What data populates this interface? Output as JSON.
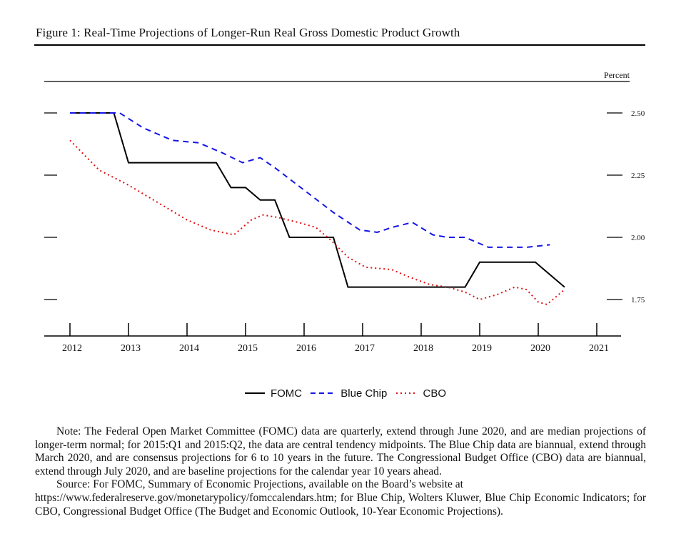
{
  "figure": {
    "title": "Figure 1: Real-Time Projections of Longer-Run Real Gross Domestic Product Growth"
  },
  "chart_data": {
    "type": "line",
    "title": "Figure 1: Real-Time Projections of Longer-Run Real Gross Domestic Product Growth",
    "ylabel": "Percent",
    "xlabel": "",
    "xlim": [
      2012,
      2021.2
    ],
    "ylim": [
      1.6,
      2.6
    ],
    "x_ticks": [
      "2012",
      "2013",
      "2014",
      "2015",
      "2016",
      "2017",
      "2018",
      "2019",
      "2020",
      "2021"
    ],
    "y_ticks": [
      "2.50",
      "2.25",
      "2.00",
      "1.75"
    ],
    "grid": false,
    "legend_position": "bottom",
    "series": [
      {
        "name": "FOMC",
        "style": "solid",
        "color": "#000000",
        "step": true,
        "points": [
          [
            2012.0,
            2.5
          ],
          [
            2012.75,
            2.5
          ],
          [
            2013.0,
            2.3
          ],
          [
            2014.5,
            2.3
          ],
          [
            2014.75,
            2.2
          ],
          [
            2015.0,
            2.2
          ],
          [
            2015.25,
            2.15
          ],
          [
            2015.5,
            2.15
          ],
          [
            2015.75,
            2.0
          ],
          [
            2016.5,
            2.0
          ],
          [
            2016.75,
            1.8
          ],
          [
            2018.75,
            1.8
          ],
          [
            2019.0,
            1.9
          ],
          [
            2019.95,
            1.9
          ],
          [
            2020.45,
            1.8
          ]
        ]
      },
      {
        "name": "Blue Chip",
        "style": "dashed",
        "color": "#1515e6",
        "points": [
          [
            2012.0,
            2.5
          ],
          [
            2012.5,
            2.5
          ],
          [
            2012.85,
            2.5
          ],
          [
            2013.25,
            2.44
          ],
          [
            2013.75,
            2.39
          ],
          [
            2014.2,
            2.38
          ],
          [
            2014.6,
            2.34
          ],
          [
            2014.95,
            2.3
          ],
          [
            2015.25,
            2.32
          ],
          [
            2015.5,
            2.28
          ],
          [
            2016.0,
            2.19
          ],
          [
            2016.5,
            2.1
          ],
          [
            2016.95,
            2.03
          ],
          [
            2017.25,
            2.02
          ],
          [
            2017.5,
            2.04
          ],
          [
            2017.85,
            2.06
          ],
          [
            2018.2,
            2.01
          ],
          [
            2018.45,
            2.0
          ],
          [
            2018.75,
            2.0
          ],
          [
            2019.15,
            1.96
          ],
          [
            2019.5,
            1.96
          ],
          [
            2019.8,
            1.96
          ],
          [
            2020.2,
            1.97
          ]
        ]
      },
      {
        "name": "CBO",
        "style": "dotted",
        "color": "#e01010",
        "points": [
          [
            2012.0,
            2.39
          ],
          [
            2012.5,
            2.27
          ],
          [
            2013.0,
            2.21
          ],
          [
            2013.5,
            2.14
          ],
          [
            2014.0,
            2.07
          ],
          [
            2014.4,
            2.03
          ],
          [
            2014.8,
            2.01
          ],
          [
            2015.1,
            2.07
          ],
          [
            2015.3,
            2.09
          ],
          [
            2015.55,
            2.08
          ],
          [
            2015.9,
            2.06
          ],
          [
            2016.2,
            2.04
          ],
          [
            2016.45,
            1.99
          ],
          [
            2016.75,
            1.92
          ],
          [
            2017.05,
            1.88
          ],
          [
            2017.5,
            1.87
          ],
          [
            2017.8,
            1.84
          ],
          [
            2018.15,
            1.81
          ],
          [
            2018.45,
            1.8
          ],
          [
            2018.75,
            1.78
          ],
          [
            2019.0,
            1.75
          ],
          [
            2019.3,
            1.77
          ],
          [
            2019.6,
            1.8
          ],
          [
            2019.8,
            1.79
          ],
          [
            2020.0,
            1.74
          ],
          [
            2020.15,
            1.73
          ],
          [
            2020.3,
            1.76
          ],
          [
            2020.45,
            1.79
          ]
        ]
      }
    ]
  },
  "notes": {
    "note": "Note: The Federal Open Market Committee (FOMC) data are quarterly, extend through June 2020, and are median projections of longer-term normal; for 2015:Q1 and 2015:Q2, the data are central tendency midpoints. The Blue Chip data are biannual, extend through March 2020, and are consensus projections for 6 to 10 years in the future. The Congressional Budget Office (CBO) data are biannual, extend through July 2020, and are baseline projections for the calendar year 10 years ahead.",
    "source_prefix": "Source: For FOMC, Summary of Economic Projections, available on the Board’s website at",
    "source_rest": "https://www.federalreserve.gov/monetarypolicy/fomccalendars.htm; for Blue Chip, Wolters Kluwer, Blue Chip Economic Indicators; for CBO, Congressional Budget Office (The Budget and Economic Outlook, 10-Year Economic Projections)."
  }
}
